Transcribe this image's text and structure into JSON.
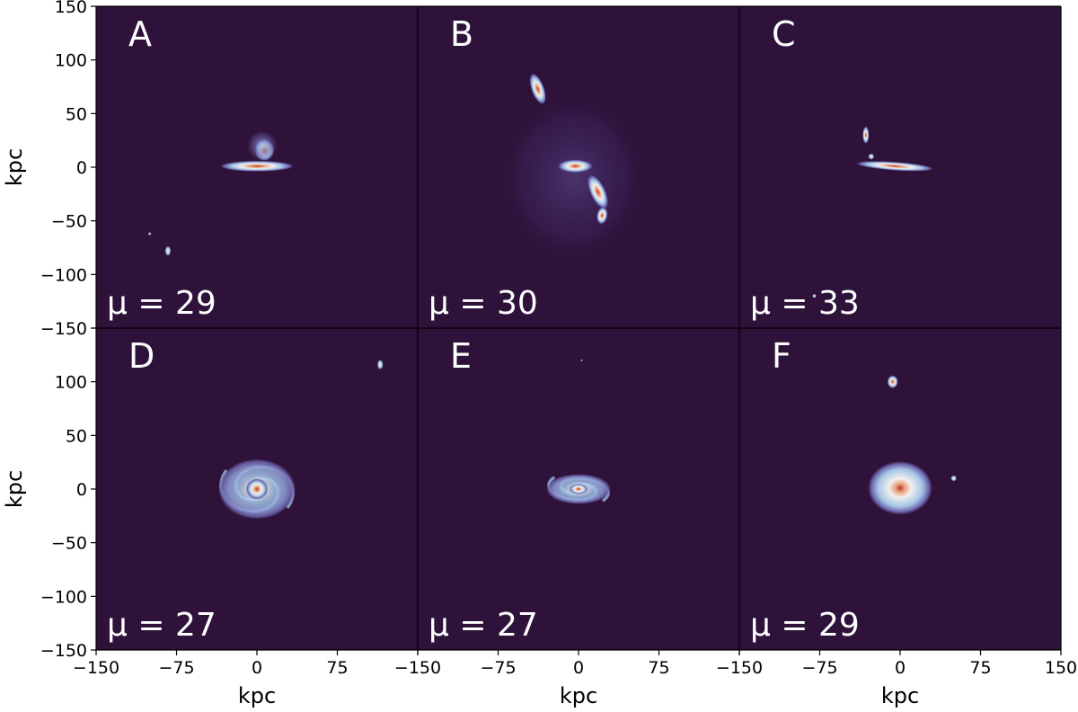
{
  "figure": {
    "background": "#2e1239",
    "axis_title_x": "kpc",
    "axis_title_y": "kpc"
  },
  "chart_data": {
    "type": "heatmap",
    "xlabel": "kpc",
    "ylabel": "kpc",
    "xlim": [
      -150,
      150
    ],
    "ylim": [
      -150,
      150
    ],
    "x_ticks": [
      -150,
      -75,
      0,
      75,
      150
    ],
    "y_ticks": [
      150,
      100,
      50,
      0,
      -50,
      -100,
      -150
    ],
    "x_tick_labels": [
      "−150",
      "−75",
      "0",
      "75",
      "150"
    ],
    "y_tick_labels": [
      "150",
      "100",
      "50",
      "0",
      "−50",
      "−100",
      "−150"
    ],
    "colormap_colors": [
      "#2e1239",
      "#6a5fa8",
      "#a3c4e6",
      "#f2f0ee",
      "#e8a27a",
      "#b23a2c"
    ],
    "panels": [
      {
        "label": "A",
        "mu": "μ = 29",
        "mu_value": 29,
        "features": [
          {
            "kind": "disk",
            "x": 0,
            "y": 1,
            "rx": 34,
            "ry": 5,
            "angle": 0
          },
          {
            "kind": "blob",
            "x": 7,
            "y": 16,
            "rx": 9,
            "ry": 10,
            "angle": 0
          },
          {
            "kind": "halo",
            "x": 5,
            "y": 20,
            "rx": 14,
            "ry": 14,
            "angle": 0
          },
          {
            "kind": "dot",
            "x": -83,
            "y": -78,
            "rx": 3,
            "ry": 5,
            "angle": 0
          },
          {
            "kind": "dot",
            "x": -100,
            "y": -62,
            "rx": 1.5,
            "ry": 1.5,
            "angle": 0
          }
        ]
      },
      {
        "label": "B",
        "mu": "μ = 30",
        "mu_value": 30,
        "features": [
          {
            "kind": "scatter",
            "x": -5,
            "y": -10,
            "rx": 70,
            "ry": 80,
            "angle": 0
          },
          {
            "kind": "blob",
            "x": -38,
            "y": 73,
            "rx": 6,
            "ry": 15,
            "angle": 20
          },
          {
            "kind": "disk",
            "x": -3,
            "y": 1,
            "rx": 16,
            "ry": 6,
            "angle": 0
          },
          {
            "kind": "blob",
            "x": 18,
            "y": -23,
            "rx": 7,
            "ry": 17,
            "angle": 25
          },
          {
            "kind": "blob",
            "x": 22,
            "y": -45,
            "rx": 5,
            "ry": 8,
            "angle": -10
          }
        ]
      },
      {
        "label": "C",
        "mu": "μ = 33",
        "mu_value": 33,
        "features": [
          {
            "kind": "disk",
            "x": -5,
            "y": 1,
            "rx": 36,
            "ry": 4,
            "angle": -4
          },
          {
            "kind": "blob",
            "x": -32,
            "y": 30,
            "rx": 3,
            "ry": 8,
            "angle": 0
          },
          {
            "kind": "dot",
            "x": -27,
            "y": 10,
            "rx": 3,
            "ry": 3,
            "angle": 0
          },
          {
            "kind": "dot",
            "x": -80,
            "y": -120,
            "rx": 2,
            "ry": 2,
            "angle": 0
          }
        ]
      },
      {
        "label": "D",
        "mu": "μ = 27",
        "mu_value": 27,
        "features": [
          {
            "kind": "spiral",
            "x": 0,
            "y": 0,
            "rx": 36,
            "ry": 28,
            "angle": 0
          },
          {
            "kind": "dot",
            "x": 115,
            "y": 116,
            "rx": 3,
            "ry": 5,
            "angle": 0
          }
        ]
      },
      {
        "label": "E",
        "mu": "μ = 27",
        "mu_value": 27,
        "features": [
          {
            "kind": "spiral",
            "x": 0,
            "y": 0,
            "rx": 30,
            "ry": 14,
            "angle": -5
          },
          {
            "kind": "dot",
            "x": 3,
            "y": 120,
            "rx": 1,
            "ry": 1,
            "angle": 0
          }
        ]
      },
      {
        "label": "F",
        "mu": "μ = 29",
        "mu_value": 29,
        "features": [
          {
            "kind": "compact",
            "x": 0,
            "y": 1,
            "rx": 30,
            "ry": 25,
            "angle": 0
          },
          {
            "kind": "blob",
            "x": -7,
            "y": 100,
            "rx": 5,
            "ry": 6,
            "angle": 0
          },
          {
            "kind": "dot",
            "x": 50,
            "y": 10,
            "rx": 3,
            "ry": 3,
            "angle": 0
          }
        ]
      }
    ]
  }
}
